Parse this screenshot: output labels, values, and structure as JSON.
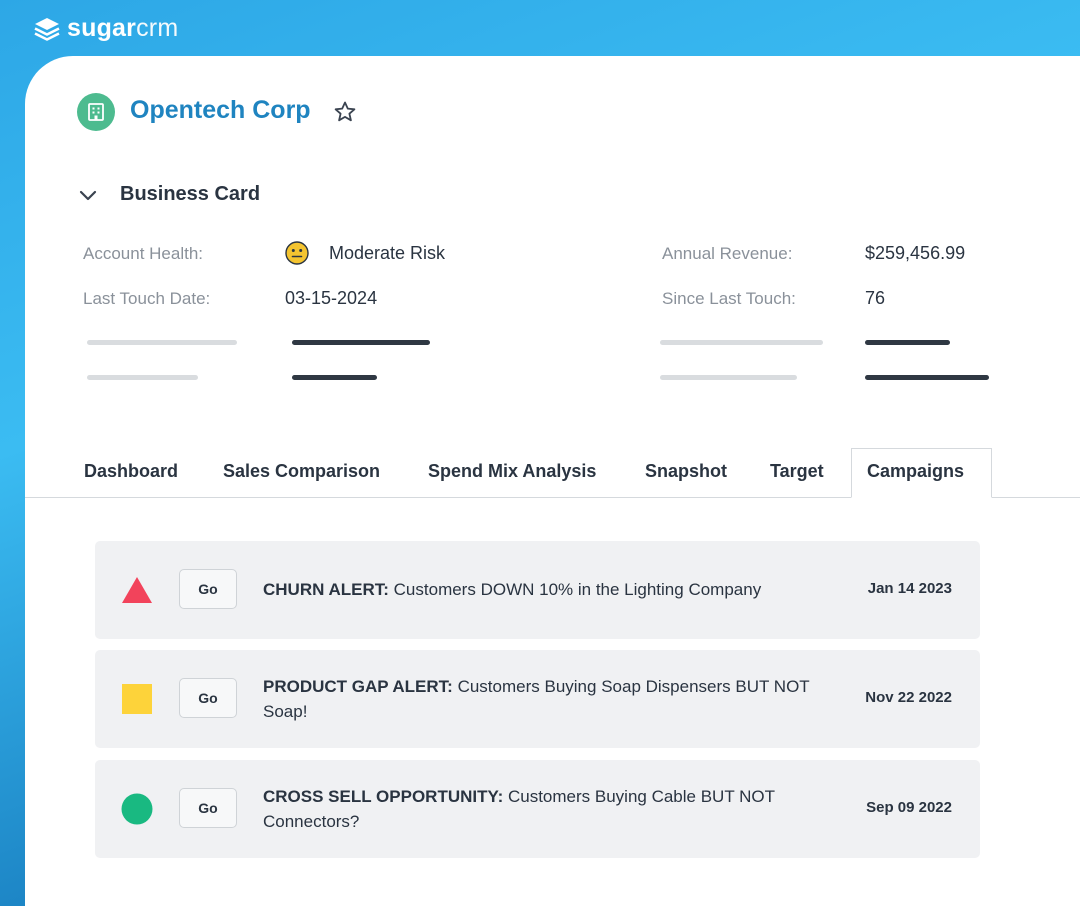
{
  "brand": {
    "name_bold": "sugar",
    "name_light": "crm"
  },
  "account": {
    "name": "Opentech Corp"
  },
  "business_card": {
    "title": "Business Card",
    "fields": {
      "account_health": {
        "label": "Account Health:",
        "value": "Moderate Risk"
      },
      "last_touch_date": {
        "label": "Last Touch Date:",
        "value": "03-15-2024"
      },
      "annual_revenue": {
        "label": "Annual Revenue:",
        "value": "$259,456.99"
      },
      "since_last_touch": {
        "label": "Since Last Touch:",
        "value": "76"
      }
    }
  },
  "tabs": [
    {
      "label": "Dashboard"
    },
    {
      "label": "Sales Comparison"
    },
    {
      "label": "Spend Mix Analysis"
    },
    {
      "label": "Snapshot"
    },
    {
      "label": "Target"
    },
    {
      "label": "Campaigns",
      "active": true
    }
  ],
  "alerts": [
    {
      "icon": "red-triangle-icon",
      "color": "#f2435b",
      "button": "Go",
      "title": "CHURN ALERT:",
      "message": "Customers DOWN 10% in the Lighting Company",
      "date": "Jan 14 2023"
    },
    {
      "icon": "yellow-square-icon",
      "color": "#fdd33a",
      "button": "Go",
      "title": "PRODUCT GAP ALERT:",
      "message": "Customers Buying Soap Dispensers BUT NOT Soap!",
      "date": "Nov 22 2022"
    },
    {
      "icon": "green-circle-icon",
      "color": "#19b981",
      "button": "Go",
      "title": "CROSS SELL OPPORTUNITY:",
      "message": "Customers Buying Cable BUT NOT Connectors?",
      "date": "Sep 09 2022"
    }
  ],
  "colors": {
    "accent": "#1f84c0",
    "account_icon_bg": "#4dbb8f",
    "health_icon": "#f4c430"
  }
}
